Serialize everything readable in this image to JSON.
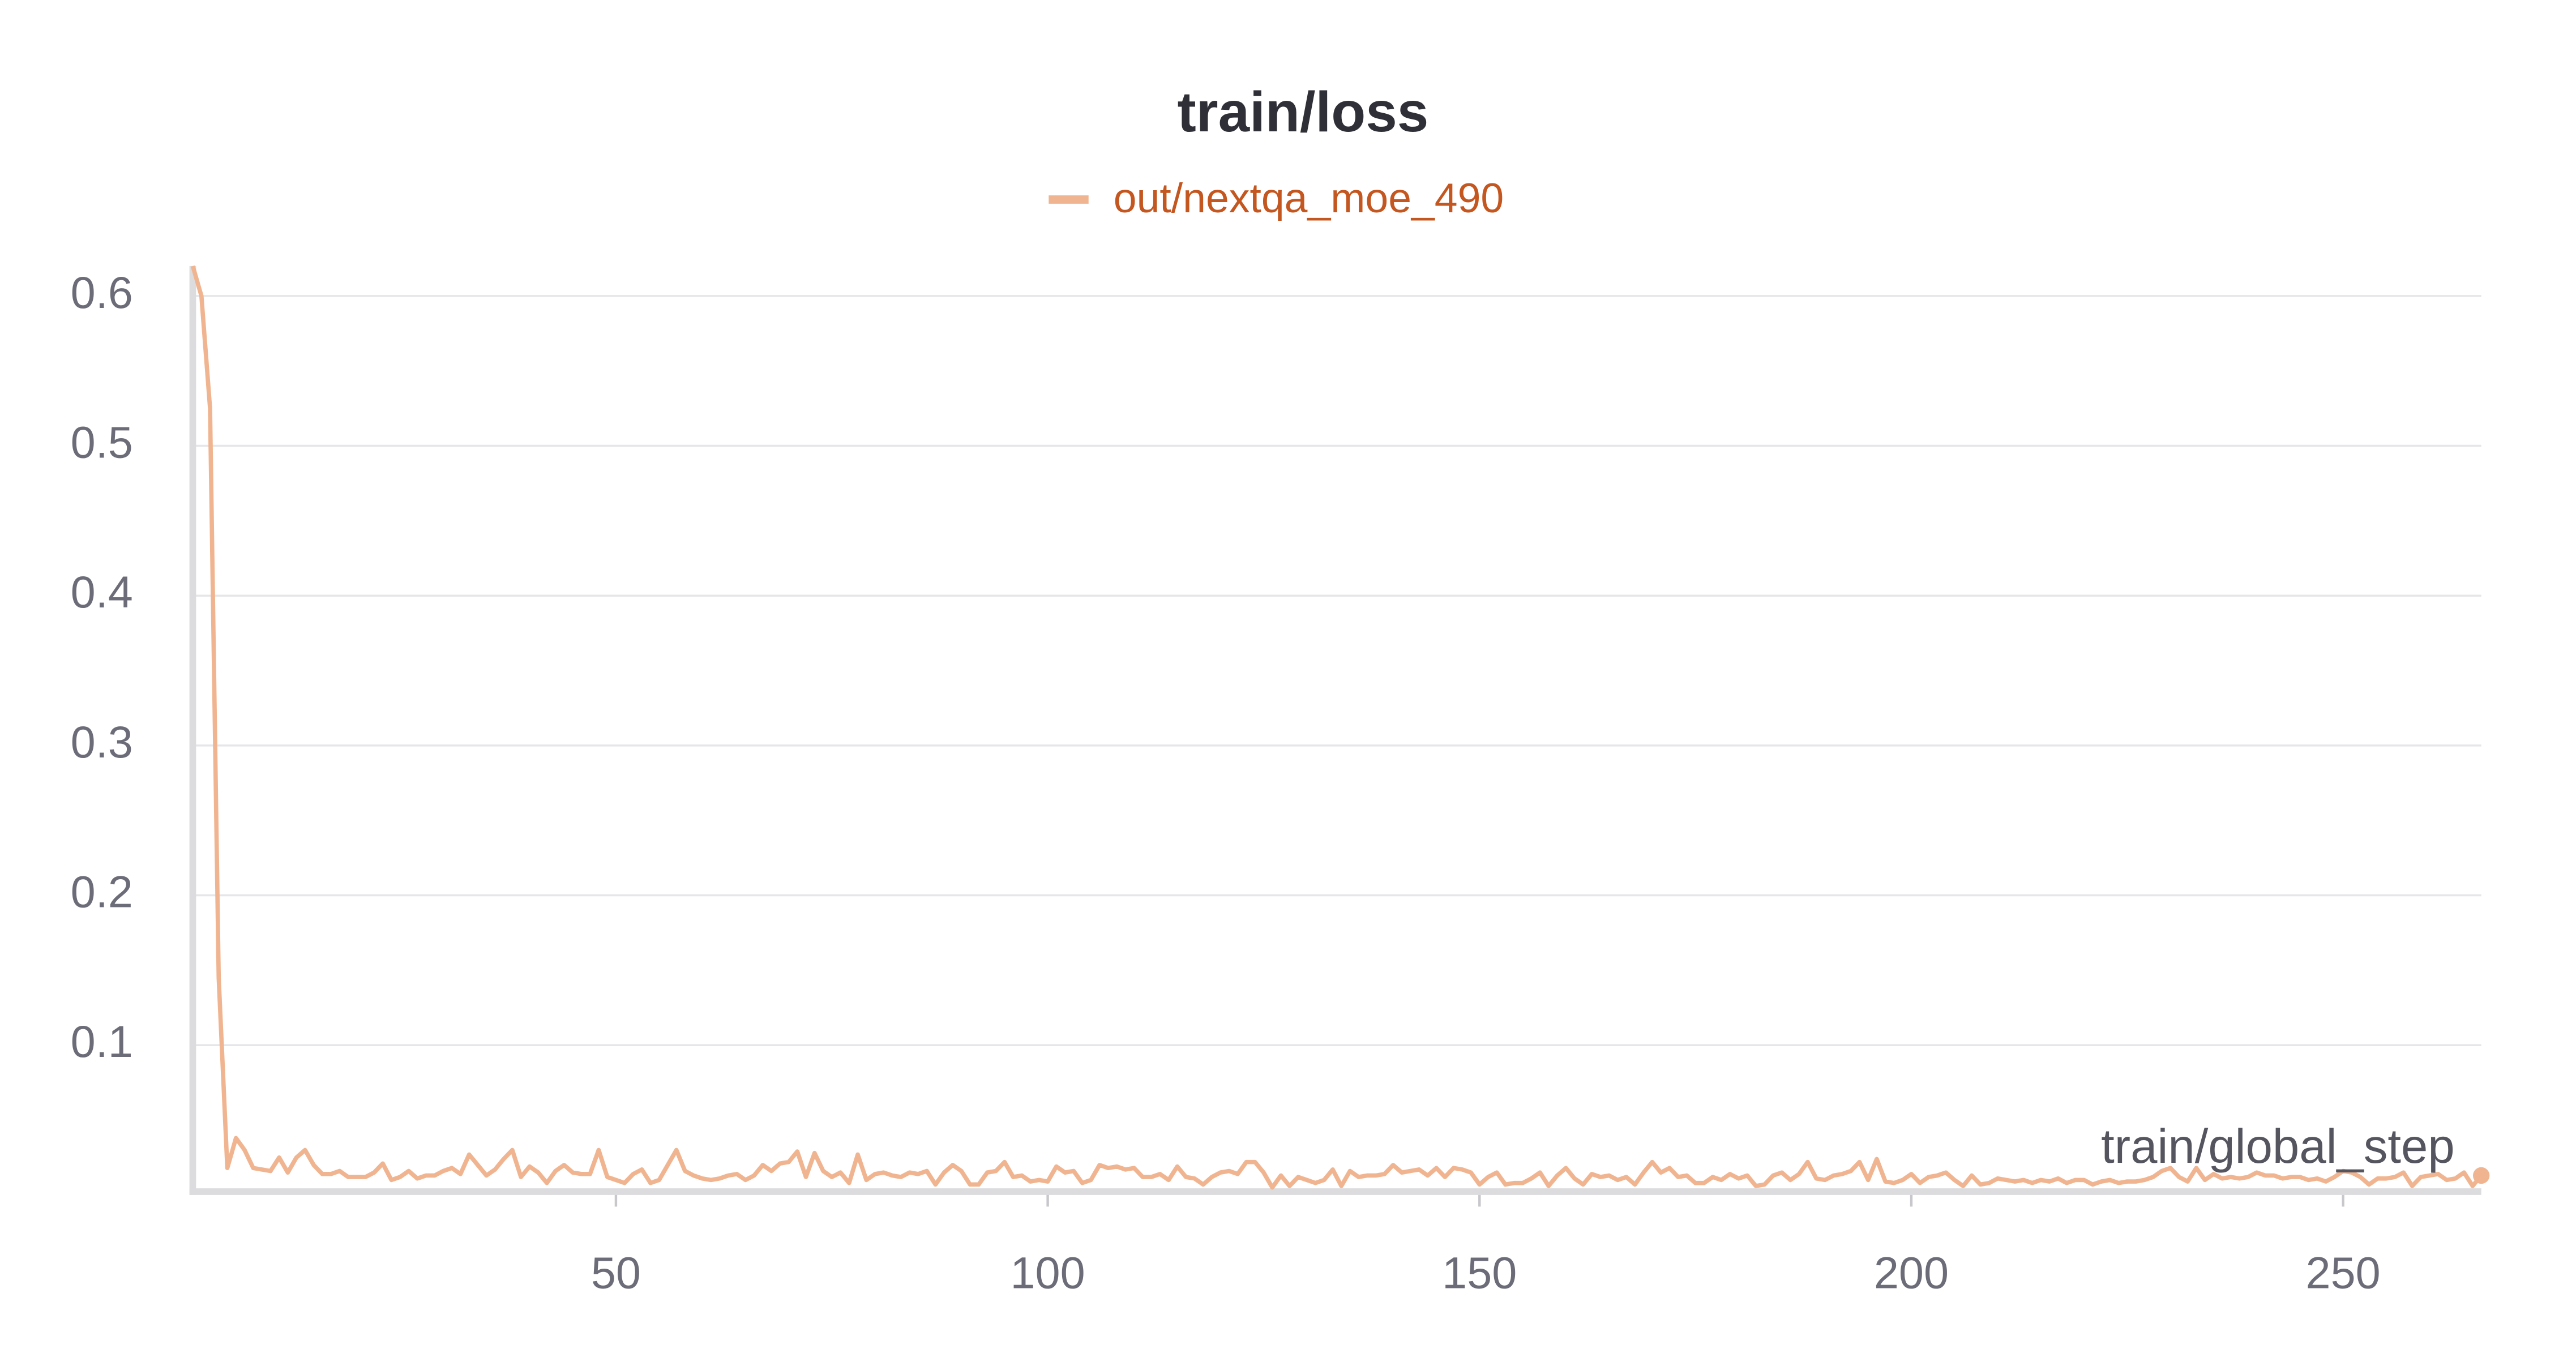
{
  "chart_data": {
    "type": "line",
    "title": "train/loss",
    "xlabel": "train/global_step",
    "x": [
      1,
      2,
      3,
      4,
      5,
      6,
      7,
      8,
      9,
      10,
      11,
      12,
      13,
      14,
      15,
      16,
      17,
      18,
      19,
      20,
      21,
      22,
      23,
      24,
      25,
      26,
      27,
      28,
      29,
      30,
      31,
      32,
      33,
      34,
      35,
      36,
      37,
      38,
      39,
      40,
      41,
      42,
      43,
      44,
      45,
      46,
      47,
      48,
      49,
      50,
      51,
      52,
      53,
      54,
      55,
      56,
      57,
      58,
      59,
      60,
      61,
      62,
      63,
      64,
      65,
      66,
      67,
      68,
      69,
      70,
      71,
      72,
      73,
      74,
      75,
      76,
      77,
      78,
      79,
      80,
      81,
      82,
      83,
      84,
      85,
      86,
      87,
      88,
      89,
      90,
      91,
      92,
      93,
      94,
      95,
      96,
      97,
      98,
      99,
      100,
      101,
      102,
      103,
      104,
      105,
      106,
      107,
      108,
      109,
      110,
      111,
      112,
      113,
      114,
      115,
      116,
      117,
      118,
      119,
      120,
      121,
      122,
      123,
      124,
      125,
      126,
      127,
      128,
      129,
      130,
      131,
      132,
      133,
      134,
      135,
      136,
      137,
      138,
      139,
      140,
      141,
      142,
      143,
      144,
      145,
      146,
      147,
      148,
      149,
      150,
      151,
      152,
      153,
      154,
      155,
      156,
      157,
      158,
      159,
      160,
      161,
      162,
      163,
      164,
      165,
      166,
      167,
      168,
      169,
      170,
      171,
      172,
      173,
      174,
      175,
      176,
      177,
      178,
      179,
      180,
      181,
      182,
      183,
      184,
      185,
      186,
      187,
      188,
      189,
      190,
      191,
      192,
      193,
      194,
      195,
      196,
      197,
      198,
      199,
      200,
      201,
      202,
      203,
      204,
      205,
      206,
      207,
      208,
      209,
      210,
      211,
      212,
      213,
      214,
      215,
      216,
      217,
      218,
      219,
      220,
      221,
      222,
      223,
      224,
      225,
      226,
      227,
      228,
      229,
      230,
      231,
      232,
      233,
      234,
      235,
      236,
      237,
      238,
      239,
      240,
      241,
      242,
      243,
      244,
      245,
      246,
      247,
      248,
      249,
      250,
      251,
      252,
      253,
      254,
      255,
      256,
      257,
      258,
      259,
      260,
      261,
      262,
      263,
      264,
      265,
      266
    ],
    "series": [
      {
        "name": "out/nextqa_moe_490",
        "color": "#f0b590",
        "label_color": "#c4561f",
        "values": [
          0.62,
          0.6,
          0.525,
          0.145,
          0.018,
          0.038,
          0.03,
          0.018,
          0.017,
          0.016,
          0.025,
          0.015,
          0.025,
          0.03,
          0.02,
          0.014,
          0.014,
          0.016,
          0.012,
          0.012,
          0.012,
          0.015,
          0.021,
          0.01,
          0.012,
          0.016,
          0.011,
          0.013,
          0.013,
          0.016,
          0.018,
          0.014,
          0.027,
          0.02,
          0.013,
          0.017,
          0.024,
          0.03,
          0.012,
          0.019,
          0.015,
          0.008,
          0.016,
          0.02,
          0.015,
          0.014,
          0.014,
          0.03,
          0.012,
          0.01,
          0.008,
          0.014,
          0.017,
          0.008,
          0.01,
          0.02,
          0.03,
          0.016,
          0.013,
          0.011,
          0.01,
          0.011,
          0.013,
          0.014,
          0.01,
          0.013,
          0.02,
          0.016,
          0.021,
          0.022,
          0.029,
          0.012,
          0.028,
          0.016,
          0.012,
          0.015,
          0.008,
          0.027,
          0.01,
          0.014,
          0.015,
          0.013,
          0.012,
          0.015,
          0.014,
          0.016,
          0.007,
          0.015,
          0.02,
          0.016,
          0.007,
          0.007,
          0.015,
          0.016,
          0.022,
          0.012,
          0.013,
          0.009,
          0.01,
          0.009,
          0.019,
          0.015,
          0.016,
          0.008,
          0.01,
          0.02,
          0.018,
          0.019,
          0.017,
          0.018,
          0.012,
          0.012,
          0.014,
          0.01,
          0.019,
          0.012,
          0.011,
          0.007,
          0.012,
          0.015,
          0.016,
          0.014,
          0.022,
          0.022,
          0.015,
          0.005,
          0.013,
          0.006,
          0.012,
          0.01,
          0.008,
          0.01,
          0.017,
          0.006,
          0.016,
          0.012,
          0.013,
          0.013,
          0.014,
          0.02,
          0.015,
          0.016,
          0.017,
          0.013,
          0.018,
          0.012,
          0.018,
          0.017,
          0.015,
          0.007,
          0.012,
          0.015,
          0.007,
          0.008,
          0.008,
          0.011,
          0.015,
          0.006,
          0.013,
          0.018,
          0.011,
          0.007,
          0.014,
          0.012,
          0.013,
          0.01,
          0.012,
          0.007,
          0.015,
          0.022,
          0.015,
          0.018,
          0.012,
          0.013,
          0.008,
          0.008,
          0.012,
          0.01,
          0.014,
          0.011,
          0.013,
          0.006,
          0.007,
          0.013,
          0.015,
          0.01,
          0.014,
          0.022,
          0.011,
          0.01,
          0.013,
          0.014,
          0.016,
          0.022,
          0.01,
          0.024,
          0.009,
          0.008,
          0.01,
          0.014,
          0.008,
          0.012,
          0.013,
          0.015,
          0.01,
          0.006,
          0.013,
          0.007,
          0.008,
          0.011,
          0.01,
          0.009,
          0.01,
          0.008,
          0.01,
          0.009,
          0.011,
          0.008,
          0.01,
          0.01,
          0.007,
          0.009,
          0.01,
          0.008,
          0.009,
          0.009,
          0.01,
          0.012,
          0.016,
          0.018,
          0.012,
          0.009,
          0.018,
          0.01,
          0.014,
          0.011,
          0.012,
          0.011,
          0.012,
          0.015,
          0.013,
          0.013,
          0.011,
          0.012,
          0.012,
          0.01,
          0.011,
          0.009,
          0.012,
          0.016,
          0.015,
          0.012,
          0.007,
          0.011,
          0.011,
          0.012,
          0.015,
          0.006,
          0.012,
          0.013,
          0.014,
          0.01,
          0.011,
          0.015,
          0.006,
          0.013
        ]
      }
    ],
    "xlim": [
      1,
      266
    ],
    "ylim": [
      0,
      0.62
    ],
    "xticks": [
      50,
      100,
      150,
      200,
      250
    ],
    "yticks": [
      0.1,
      0.2,
      0.3,
      0.4,
      0.5,
      0.6
    ],
    "grid": true
  }
}
